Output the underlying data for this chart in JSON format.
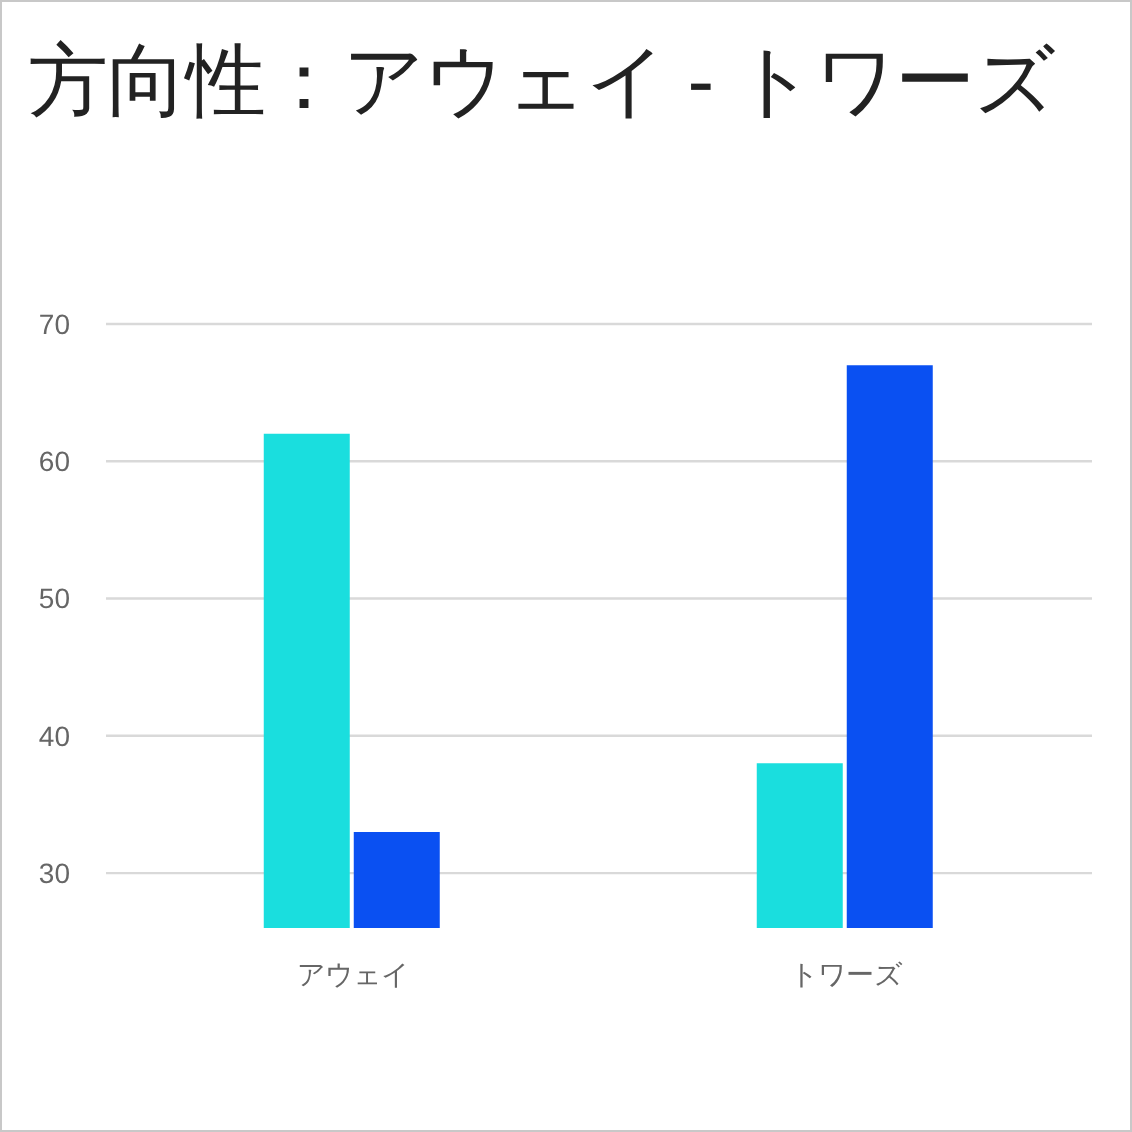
{
  "chart_data": {
    "type": "bar",
    "title": "方向性：アウェイ - トワーズ",
    "categories": [
      "アウェイ",
      "トワーズ"
    ],
    "series": [
      {
        "color": "#1adede",
        "values": [
          62,
          38
        ]
      },
      {
        "color": "#0a50f2",
        "values": [
          33,
          67
        ]
      }
    ],
    "ylim": [
      26,
      70
    ],
    "yticks": [
      30,
      40,
      50,
      60,
      70
    ],
    "grid": "y"
  }
}
